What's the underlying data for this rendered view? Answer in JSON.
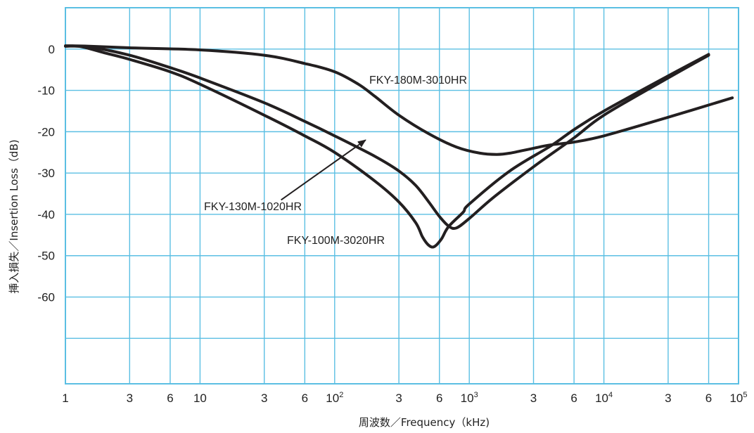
{
  "chart_data": {
    "type": "line",
    "xscale": "log",
    "xlim": [
      1,
      100000
    ],
    "ylim": [
      -81,
      10
    ],
    "grid": true,
    "xlabel": "周波数／Frequency（kHz)",
    "ylabel": "挿入損失／Insertion Loss（dB)",
    "yticks": [
      0,
      -10,
      -20,
      -30,
      -40,
      -50,
      -60
    ],
    "ygrid_extra": [
      -70
    ],
    "xticks": [
      {
        "value": 1,
        "label": "1",
        "sup": ""
      },
      {
        "value": 3,
        "label": "3",
        "sup": ""
      },
      {
        "value": 6,
        "label": "6",
        "sup": ""
      },
      {
        "value": 10,
        "label": "10",
        "sup": ""
      },
      {
        "value": 30,
        "label": "3",
        "sup": ""
      },
      {
        "value": 60,
        "label": "6",
        "sup": ""
      },
      {
        "value": 100,
        "label": "10",
        "sup": "2"
      },
      {
        "value": 300,
        "label": "3",
        "sup": ""
      },
      {
        "value": 600,
        "label": "6",
        "sup": ""
      },
      {
        "value": 1000,
        "label": "10",
        "sup": "3"
      },
      {
        "value": 3000,
        "label": "3",
        "sup": ""
      },
      {
        "value": 6000,
        "label": "6",
        "sup": ""
      },
      {
        "value": 10000,
        "label": "10",
        "sup": "4"
      },
      {
        "value": 30000,
        "label": "3",
        "sup": ""
      },
      {
        "value": 60000,
        "label": "6",
        "sup": ""
      },
      {
        "value": 100000,
        "label": "10",
        "sup": "5"
      }
    ],
    "series": [
      {
        "name": "FKY-180M-3010HR",
        "points": [
          [
            1,
            0.8
          ],
          [
            1.5,
            0.7
          ],
          [
            3,
            0.3
          ],
          [
            10,
            -0.2
          ],
          [
            30,
            -1.5
          ],
          [
            60,
            -3.5
          ],
          [
            100,
            -5.5
          ],
          [
            150,
            -8.5
          ],
          [
            200,
            -11.5
          ],
          [
            300,
            -16
          ],
          [
            500,
            -20.5
          ],
          [
            800,
            -23.7
          ],
          [
            1200,
            -25.2
          ],
          [
            1600,
            -25.5
          ],
          [
            2000,
            -25.2
          ],
          [
            3000,
            -24
          ],
          [
            4000,
            -23.2
          ],
          [
            6000,
            -22.5
          ],
          [
            10000,
            -21
          ],
          [
            30000,
            -16.5
          ],
          [
            90000,
            -11.8
          ]
        ]
      },
      {
        "name": "FKY-130M-1020HR",
        "points": [
          [
            1,
            0.7
          ],
          [
            1.5,
            0.5
          ],
          [
            3,
            -1.5
          ],
          [
            6,
            -4.5
          ],
          [
            10,
            -7
          ],
          [
            30,
            -13
          ],
          [
            60,
            -17.5
          ],
          [
            100,
            -21
          ],
          [
            200,
            -26
          ],
          [
            300,
            -29.5
          ],
          [
            400,
            -33
          ],
          [
            500,
            -37
          ],
          [
            600,
            -40.5
          ],
          [
            700,
            -42.8
          ],
          [
            800,
            -43.3
          ],
          [
            1000,
            -41
          ],
          [
            1500,
            -36
          ],
          [
            3000,
            -28.5
          ],
          [
            6000,
            -21.5
          ],
          [
            10000,
            -16
          ],
          [
            30000,
            -7
          ],
          [
            60000,
            -1.5
          ]
        ]
      },
      {
        "name": "FKY-100M-3020HR",
        "points": [
          [
            1,
            0.7
          ],
          [
            1.3,
            0.6
          ],
          [
            2,
            -1
          ],
          [
            3,
            -2.5
          ],
          [
            6,
            -5.5
          ],
          [
            10,
            -8.5
          ],
          [
            30,
            -16
          ],
          [
            60,
            -21
          ],
          [
            100,
            -25
          ],
          [
            200,
            -32
          ],
          [
            300,
            -37
          ],
          [
            400,
            -42
          ],
          [
            450,
            -45.5
          ],
          [
            500,
            -47.5
          ],
          [
            550,
            -47.8
          ],
          [
            620,
            -46
          ],
          [
            700,
            -43
          ],
          [
            900,
            -39.5
          ],
          [
            1000,
            -37.5
          ],
          [
            2000,
            -29.5
          ],
          [
            4000,
            -23.5
          ],
          [
            6000,
            -19.5
          ],
          [
            10000,
            -15
          ],
          [
            30000,
            -6.5
          ],
          [
            60000,
            -1.3
          ]
        ]
      }
    ],
    "annotations": [
      {
        "text": "FKY-180M-3010HR",
        "series": "FKY-180M-3010HR"
      },
      {
        "text": "FKY-130M-1020HR",
        "series": "FKY-130M-1020HR",
        "arrow": {
          "from": [
            40,
            -36.5
          ],
          "to": [
            170,
            -22
          ]
        }
      },
      {
        "text": "FKY-100M-3020HR",
        "series": "FKY-100M-3020HR"
      }
    ]
  },
  "colors": {
    "grid": "#5bbfe3",
    "line": "#231f20",
    "text": "#222222"
  }
}
